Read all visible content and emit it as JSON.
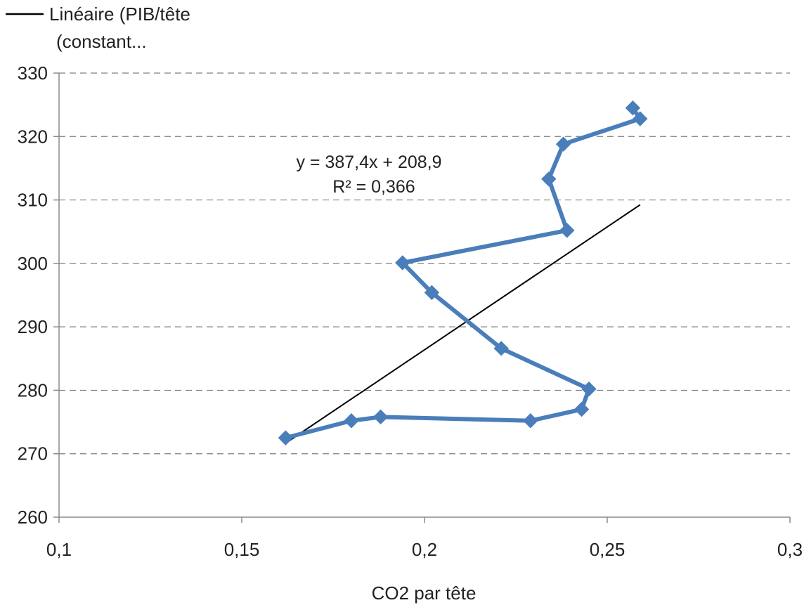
{
  "chart_data": {
    "type": "scatter",
    "title": "",
    "xlabel": "CO2 par tête",
    "ylabel": "",
    "xlim": [
      0.1,
      0.3
    ],
    "ylim": [
      260,
      330
    ],
    "x_ticks": [
      0.1,
      0.15,
      0.2,
      0.25,
      0.3
    ],
    "x_tick_labels": [
      "0,1",
      "0,15",
      "0,2",
      "0,25",
      "0,3"
    ],
    "y_ticks": [
      260,
      270,
      280,
      290,
      300,
      310,
      320,
      330
    ],
    "y_tick_labels": [
      "260",
      "270",
      "280",
      "290",
      "300",
      "310",
      "320",
      "330"
    ],
    "grid": "horizontal dashed",
    "legend_position": "top-left",
    "series": [
      {
        "color": "#4a7ebb",
        "marker": "diamond",
        "connected": true,
        "points": [
          {
            "x": 0.257,
            "y": 324.5
          },
          {
            "x": 0.259,
            "y": 322.8
          },
          {
            "x": 0.238,
            "y": 318.8
          },
          {
            "x": 0.234,
            "y": 313.3
          },
          {
            "x": 0.239,
            "y": 305.2
          },
          {
            "x": 0.194,
            "y": 300.1
          },
          {
            "x": 0.202,
            "y": 295.4
          },
          {
            "x": 0.221,
            "y": 286.6
          },
          {
            "x": 0.245,
            "y": 280.2
          },
          {
            "x": 0.243,
            "y": 277.0
          },
          {
            "x": 0.229,
            "y": 275.2
          },
          {
            "x": 0.188,
            "y": 275.8
          },
          {
            "x": 0.18,
            "y": 275.2
          },
          {
            "x": 0.162,
            "y": 272.5
          }
        ]
      }
    ],
    "trendline": {
      "name": "Linéaire (PIB/tête (constant...",
      "legend_line1": "Linéaire (PIB/tête",
      "legend_line2": "(constant...",
      "color": "#000000",
      "slope": 387.4,
      "intercept": 208.9,
      "x_range": [
        0.163,
        0.259
      ],
      "equation": "y = 387,4x + 208,9",
      "r_squared": "R² = 0,366"
    }
  }
}
